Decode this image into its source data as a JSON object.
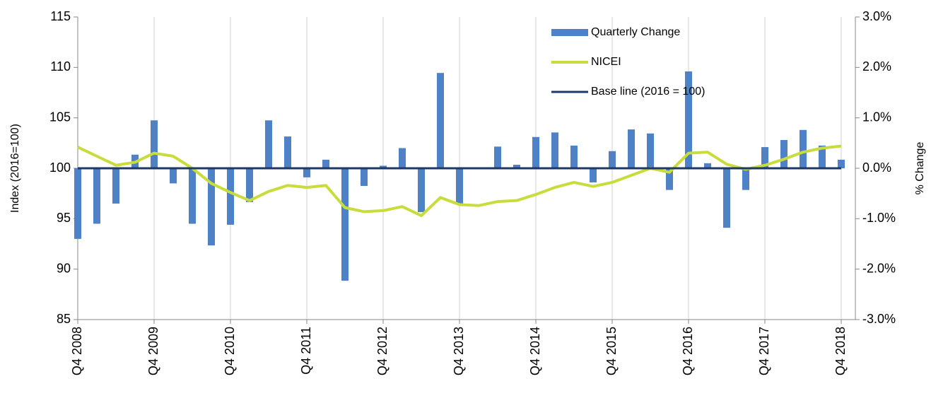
{
  "chart_data": {
    "type": "bar-line",
    "y_label": "Index (2016=100)",
    "y2_label": "% Change",
    "categories": [
      "Q4 2008",
      null,
      null,
      null,
      "Q4 2009",
      null,
      null,
      null,
      "Q4 2010",
      null,
      null,
      null,
      "Q4 2011",
      null,
      null,
      null,
      "Q4 2012",
      null,
      null,
      null,
      "Q4 2013",
      null,
      null,
      null,
      "Q4 2014",
      null,
      null,
      null,
      "Q4 2015",
      null,
      null,
      null,
      "Q4 2016",
      null,
      null,
      null,
      "Q4 2017",
      null,
      null,
      null,
      "Q4 2018"
    ],
    "series": [
      {
        "name": "Quarterly Change",
        "type": "bar",
        "axis": "y2",
        "color": "#4f81c6",
        "values": [
          -1.4,
          -1.1,
          -0.7,
          0.27,
          0.95,
          -0.3,
          -1.1,
          -1.53,
          -1.12,
          -0.67,
          0.95,
          0.63,
          -0.18,
          0.17,
          -2.23,
          -0.35,
          0.05,
          0.4,
          -0.87,
          1.89,
          -0.7,
          -0.01,
          0.43,
          0.07,
          0.62,
          0.71,
          0.45,
          -0.28,
          0.34,
          0.77,
          0.69,
          -0.43,
          1.92,
          0.1,
          -1.18,
          -0.43,
          0.42,
          0.56,
          0.76,
          0.45,
          0.17
        ]
      },
      {
        "name": "NICEI",
        "type": "line",
        "color": "#c8dc3c",
        "values": [
          102.1,
          101.2,
          100.3,
          100.6,
          101.5,
          101.2,
          100.0,
          98.5,
          97.6,
          96.8,
          97.7,
          98.3,
          98.1,
          98.3,
          96.1,
          95.7,
          95.8,
          96.2,
          95.3,
          97.1,
          96.4,
          96.3,
          96.7,
          96.8,
          97.4,
          98.1,
          98.6,
          98.2,
          98.6,
          99.3,
          100.0,
          99.6,
          101.5,
          101.6,
          100.4,
          99.9,
          100.3,
          100.9,
          101.6,
          102.0,
          102.2
        ]
      },
      {
        "name": "Base line (2016 = 100)",
        "type": "line",
        "color": "#1f3864",
        "values": [
          100,
          100,
          100,
          100,
          100,
          100,
          100,
          100,
          100,
          100,
          100,
          100,
          100,
          100,
          100,
          100,
          100,
          100,
          100,
          100,
          100,
          100,
          100,
          100,
          100,
          100,
          100,
          100,
          100,
          100,
          100,
          100,
          100,
          100,
          100,
          100,
          100,
          100,
          100,
          100,
          100
        ]
      }
    ],
    "ylim": [
      85,
      115
    ],
    "yticks": [
      85,
      90,
      95,
      100,
      105,
      110,
      115
    ],
    "y2lim": [
      -3,
      3
    ],
    "y2ticks": [
      {
        "value": -3,
        "label": "-3.0%"
      },
      {
        "value": -2,
        "label": "-2.0%"
      },
      {
        "value": -1,
        "label": "-1.0%"
      },
      {
        "value": 0,
        "label": "0.0%"
      },
      {
        "value": 1,
        "label": "1.0%"
      },
      {
        "value": 2,
        "label": "2.0%"
      },
      {
        "value": 3,
        "label": "3.0%"
      }
    ],
    "grid": "x",
    "legend": "upper right"
  }
}
